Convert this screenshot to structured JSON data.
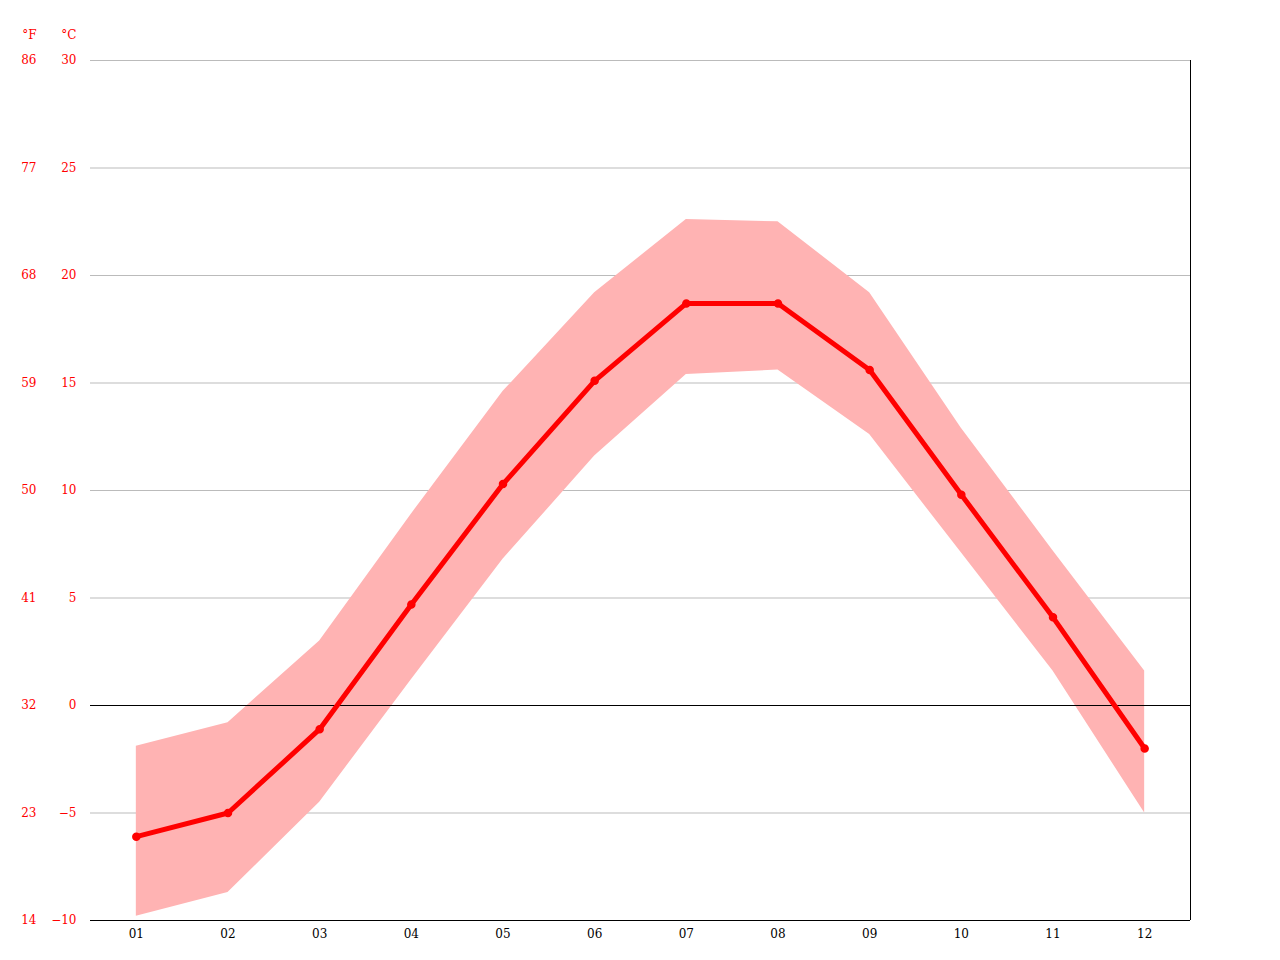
{
  "chart_data": {
    "type": "line",
    "x": [
      1,
      2,
      3,
      4,
      5,
      6,
      7,
      8,
      9,
      10,
      11,
      12
    ],
    "xlim": [
      0.5,
      12.5
    ],
    "xticks": [
      {
        "value": 1,
        "label": "01"
      },
      {
        "value": 2,
        "label": "02"
      },
      {
        "value": 3,
        "label": "03"
      },
      {
        "value": 4,
        "label": "04"
      },
      {
        "value": 5,
        "label": "05"
      },
      {
        "value": 6,
        "label": "06"
      },
      {
        "value": 7,
        "label": "07"
      },
      {
        "value": 8,
        "label": "08"
      },
      {
        "value": 9,
        "label": "09"
      },
      {
        "value": 10,
        "label": "10"
      },
      {
        "value": 11,
        "label": "11"
      },
      {
        "value": 12,
        "label": "12"
      }
    ],
    "values": [
      -6.1,
      -5.0,
      -1.1,
      4.7,
      10.3,
      15.1,
      18.7,
      18.7,
      15.6,
      9.8,
      4.1,
      -2.0
    ],
    "min": [
      -9.8,
      -8.7,
      -4.5,
      1.2,
      6.8,
      11.6,
      15.4,
      15.6,
      12.6,
      7.1,
      1.6,
      -5.0
    ],
    "max": [
      -1.9,
      -0.8,
      3.0,
      8.9,
      14.6,
      19.2,
      22.6,
      22.5,
      19.2,
      12.9,
      7.2,
      1.6
    ],
    "color": "#ff0000",
    "marker": "circle",
    "ylim": [
      -10,
      30
    ],
    "yticks": [
      -10,
      -5,
      0,
      5,
      10,
      15,
      20,
      25,
      30
    ],
    "y_label": "°C",
    "y2lim": [
      14,
      86
    ],
    "y2ticks": [
      14,
      23,
      32,
      41,
      50,
      59,
      68,
      77,
      86
    ],
    "y2_label": "°F",
    "grid": true
  }
}
